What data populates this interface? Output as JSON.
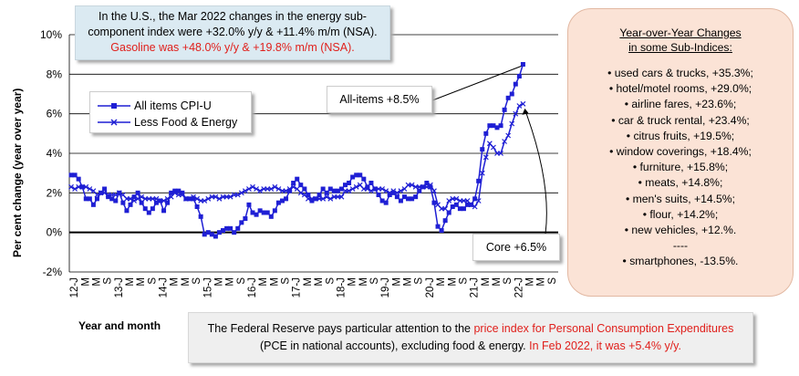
{
  "top_note": {
    "line1": "In the U.S., the Mar 2022 changes in the energy sub-",
    "line2": "component index were +32.0% y/y & +11.4% m/m (NSA).",
    "line3": "Gasoline was +48.0% y/y & +19.8% m/m (NSA)."
  },
  "annotations": {
    "all_items": "All-items +8.5%",
    "core": "Core +6.5%"
  },
  "side_panel": {
    "title_line1": "Year-over-Year Changes",
    "title_line2": "in some Sub-Indices:",
    "items": [
      "• used cars & trucks, +35.3%;",
      "• hotel/motel rooms, +29.0%;",
      "• airline fares, +23.6%;",
      "• car & truck rental, +23.4%;",
      "• citrus fruits, +19.5%;",
      "• window coverings, +18.4%;",
      "• furniture, +15.8%;",
      "• meats, +14.8%;",
      "• men's suits, +14.5%;",
      "• flour, +14.2%;",
      "• new vehicles, +12.%.",
      "----",
      "• smartphones, -13.5%."
    ]
  },
  "bottom_note": {
    "p1": "The Federal Reserve pays particular attention to the ",
    "p2": "price index for Personal Consumption Expenditures",
    "p3": "(PCE in national accounts), excluding food & energy. ",
    "p4": "In Feb 2022, it was +5.4% y/y."
  },
  "colors": {
    "series": "#1f1fd4",
    "annotation_red": "#e0201c",
    "side_bg": "#fbe3d6",
    "top_bg": "#dbeaf2"
  },
  "chart_data": {
    "type": "line",
    "xlabel": "Year and month",
    "ylabel": "Per cent change (year over year)",
    "ylim": [
      -2,
      10
    ],
    "y_ticks": [
      "-2%",
      "0%",
      "2%",
      "4%",
      "6%",
      "8%",
      "10%"
    ],
    "x_tick_labels": [
      "12-J",
      "M",
      "M",
      "S",
      "13-J",
      "M",
      "M",
      "S",
      "14-J",
      "M",
      "M",
      "S",
      "15-J",
      "M",
      "M",
      "S",
      "16-J",
      "M",
      "M",
      "S",
      "17-J",
      "M",
      "M",
      "S",
      "18-J",
      "M",
      "M",
      "S",
      "19-J",
      "M",
      "M",
      "S",
      "20-J",
      "M",
      "M",
      "S",
      "21-J",
      "M",
      "M",
      "S",
      "22-J",
      "M",
      "M",
      "S"
    ],
    "x": [
      "2012-01",
      "2012-02",
      "2012-03",
      "2012-04",
      "2012-05",
      "2012-06",
      "2012-07",
      "2012-08",
      "2012-09",
      "2012-10",
      "2012-11",
      "2012-12",
      "2013-01",
      "2013-02",
      "2013-03",
      "2013-04",
      "2013-05",
      "2013-06",
      "2013-07",
      "2013-08",
      "2013-09",
      "2013-10",
      "2013-11",
      "2013-12",
      "2014-01",
      "2014-02",
      "2014-03",
      "2014-04",
      "2014-05",
      "2014-06",
      "2014-07",
      "2014-08",
      "2014-09",
      "2014-10",
      "2014-11",
      "2014-12",
      "2015-01",
      "2015-02",
      "2015-03",
      "2015-04",
      "2015-05",
      "2015-06",
      "2015-07",
      "2015-08",
      "2015-09",
      "2015-10",
      "2015-11",
      "2015-12",
      "2016-01",
      "2016-02",
      "2016-03",
      "2016-04",
      "2016-05",
      "2016-06",
      "2016-07",
      "2016-08",
      "2016-09",
      "2016-10",
      "2016-11",
      "2016-12",
      "2017-01",
      "2017-02",
      "2017-03",
      "2017-04",
      "2017-05",
      "2017-06",
      "2017-07",
      "2017-08",
      "2017-09",
      "2017-10",
      "2017-11",
      "2017-12",
      "2018-01",
      "2018-02",
      "2018-03",
      "2018-04",
      "2018-05",
      "2018-06",
      "2018-07",
      "2018-08",
      "2018-09",
      "2018-10",
      "2018-11",
      "2018-12",
      "2019-01",
      "2019-02",
      "2019-03",
      "2019-04",
      "2019-05",
      "2019-06",
      "2019-07",
      "2019-08",
      "2019-09",
      "2019-10",
      "2019-11",
      "2019-12",
      "2020-01",
      "2020-02",
      "2020-03",
      "2020-04",
      "2020-05",
      "2020-06",
      "2020-07",
      "2020-08",
      "2020-09",
      "2020-10",
      "2020-11",
      "2020-12",
      "2021-01",
      "2021-02",
      "2021-03",
      "2021-04",
      "2021-05",
      "2021-06",
      "2021-07",
      "2021-08",
      "2021-09",
      "2021-10",
      "2021-11",
      "2021-12",
      "2022-01",
      "2022-02",
      "2022-03"
    ],
    "series": [
      {
        "name": "All items CPI-U",
        "marker": "square",
        "values": [
          2.9,
          2.9,
          2.7,
          2.3,
          1.7,
          1.7,
          1.4,
          1.7,
          2.0,
          2.2,
          1.8,
          1.7,
          1.6,
          2.0,
          1.5,
          1.1,
          1.4,
          1.8,
          2.0,
          1.5,
          1.2,
          1.0,
          1.2,
          1.5,
          1.6,
          1.1,
          1.5,
          2.0,
          2.1,
          2.1,
          2.0,
          1.7,
          1.7,
          1.7,
          1.3,
          0.8,
          -0.1,
          0.0,
          -0.1,
          -0.2,
          0.0,
          0.1,
          0.2,
          0.2,
          0.0,
          0.2,
          0.5,
          0.7,
          1.4,
          1.0,
          0.9,
          1.1,
          1.0,
          1.0,
          0.8,
          1.1,
          1.5,
          1.6,
          1.7,
          2.1,
          2.5,
          2.7,
          2.4,
          2.2,
          1.9,
          1.6,
          1.7,
          1.9,
          2.2,
          2.0,
          2.2,
          2.1,
          2.1,
          2.2,
          2.4,
          2.5,
          2.8,
          2.9,
          2.9,
          2.7,
          2.3,
          2.5,
          2.2,
          1.9,
          1.6,
          1.5,
          1.9,
          2.0,
          1.8,
          1.6,
          1.8,
          1.7,
          1.7,
          1.8,
          2.1,
          2.3,
          2.5,
          2.3,
          1.5,
          0.3,
          0.1,
          0.6,
          1.0,
          1.3,
          1.4,
          1.2,
          1.2,
          1.4,
          1.4,
          1.7,
          2.6,
          4.2,
          5.0,
          5.4,
          5.4,
          5.3,
          5.4,
          6.2,
          6.8,
          7.0,
          7.5,
          7.9,
          8.5
        ]
      },
      {
        "name": "Less Food & Energy",
        "marker": "x",
        "values": [
          2.3,
          2.2,
          2.3,
          2.3,
          2.3,
          2.2,
          2.1,
          1.9,
          2.0,
          2.0,
          1.9,
          1.9,
          1.9,
          2.0,
          1.9,
          1.7,
          1.7,
          1.6,
          1.7,
          1.8,
          1.7,
          1.7,
          1.7,
          1.7,
          1.6,
          1.6,
          1.7,
          1.8,
          2.0,
          1.9,
          1.9,
          1.7,
          1.7,
          1.8,
          1.7,
          1.6,
          1.6,
          1.7,
          1.8,
          1.8,
          1.7,
          1.8,
          1.8,
          1.8,
          1.9,
          1.9,
          2.0,
          2.1,
          2.2,
          2.3,
          2.2,
          2.1,
          2.2,
          2.2,
          2.2,
          2.3,
          2.2,
          2.1,
          2.1,
          2.2,
          2.3,
          2.2,
          2.0,
          1.9,
          1.7,
          1.7,
          1.7,
          1.7,
          1.7,
          1.8,
          1.7,
          1.8,
          1.8,
          1.8,
          2.1,
          2.1,
          2.2,
          2.3,
          2.4,
          2.2,
          2.2,
          2.1,
          2.2,
          2.2,
          2.2,
          2.1,
          2.0,
          2.1,
          2.0,
          2.1,
          2.2,
          2.4,
          2.4,
          2.3,
          2.3,
          2.3,
          2.3,
          2.4,
          2.1,
          1.4,
          1.2,
          1.2,
          1.6,
          1.7,
          1.7,
          1.6,
          1.6,
          1.6,
          1.4,
          1.3,
          1.6,
          3.0,
          3.8,
          4.5,
          4.3,
          4.0,
          4.0,
          4.6,
          4.9,
          5.5,
          6.0,
          6.4,
          6.5
        ]
      }
    ]
  }
}
